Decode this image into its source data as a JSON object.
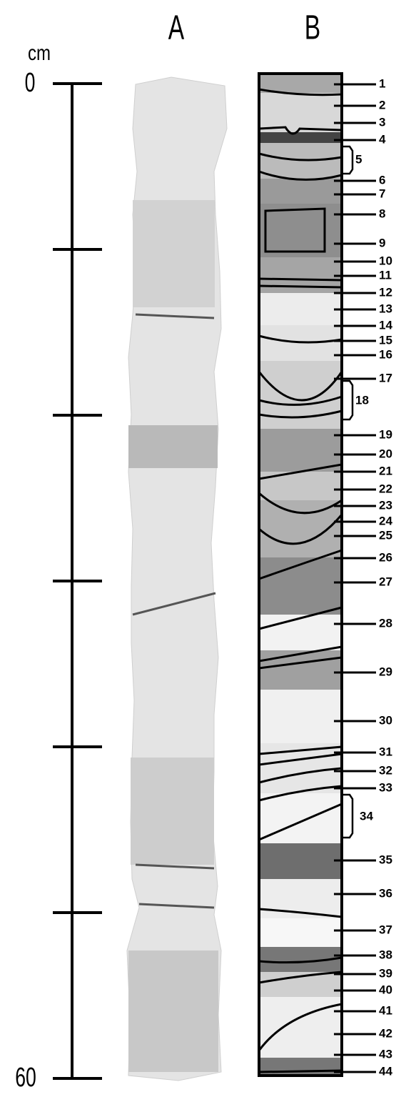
{
  "column_labels": [
    "A",
    "B"
  ],
  "scale": {
    "unit": "cm",
    "top": "0",
    "bottom": "60"
  },
  "layers": [
    "1",
    "2",
    "3",
    "4",
    "5",
    "6",
    "7",
    "8",
    "9",
    "10",
    "11",
    "12",
    "13",
    "14",
    "15",
    "16",
    "17",
    "18",
    "19",
    "20",
    "21",
    "22",
    "23",
    "24",
    "25",
    "26",
    "27",
    "28",
    "29",
    "30",
    "31",
    "32",
    "33",
    "34",
    "35",
    "36",
    "37",
    "38",
    "39",
    "40",
    "41",
    "42",
    "43",
    "44"
  ]
}
